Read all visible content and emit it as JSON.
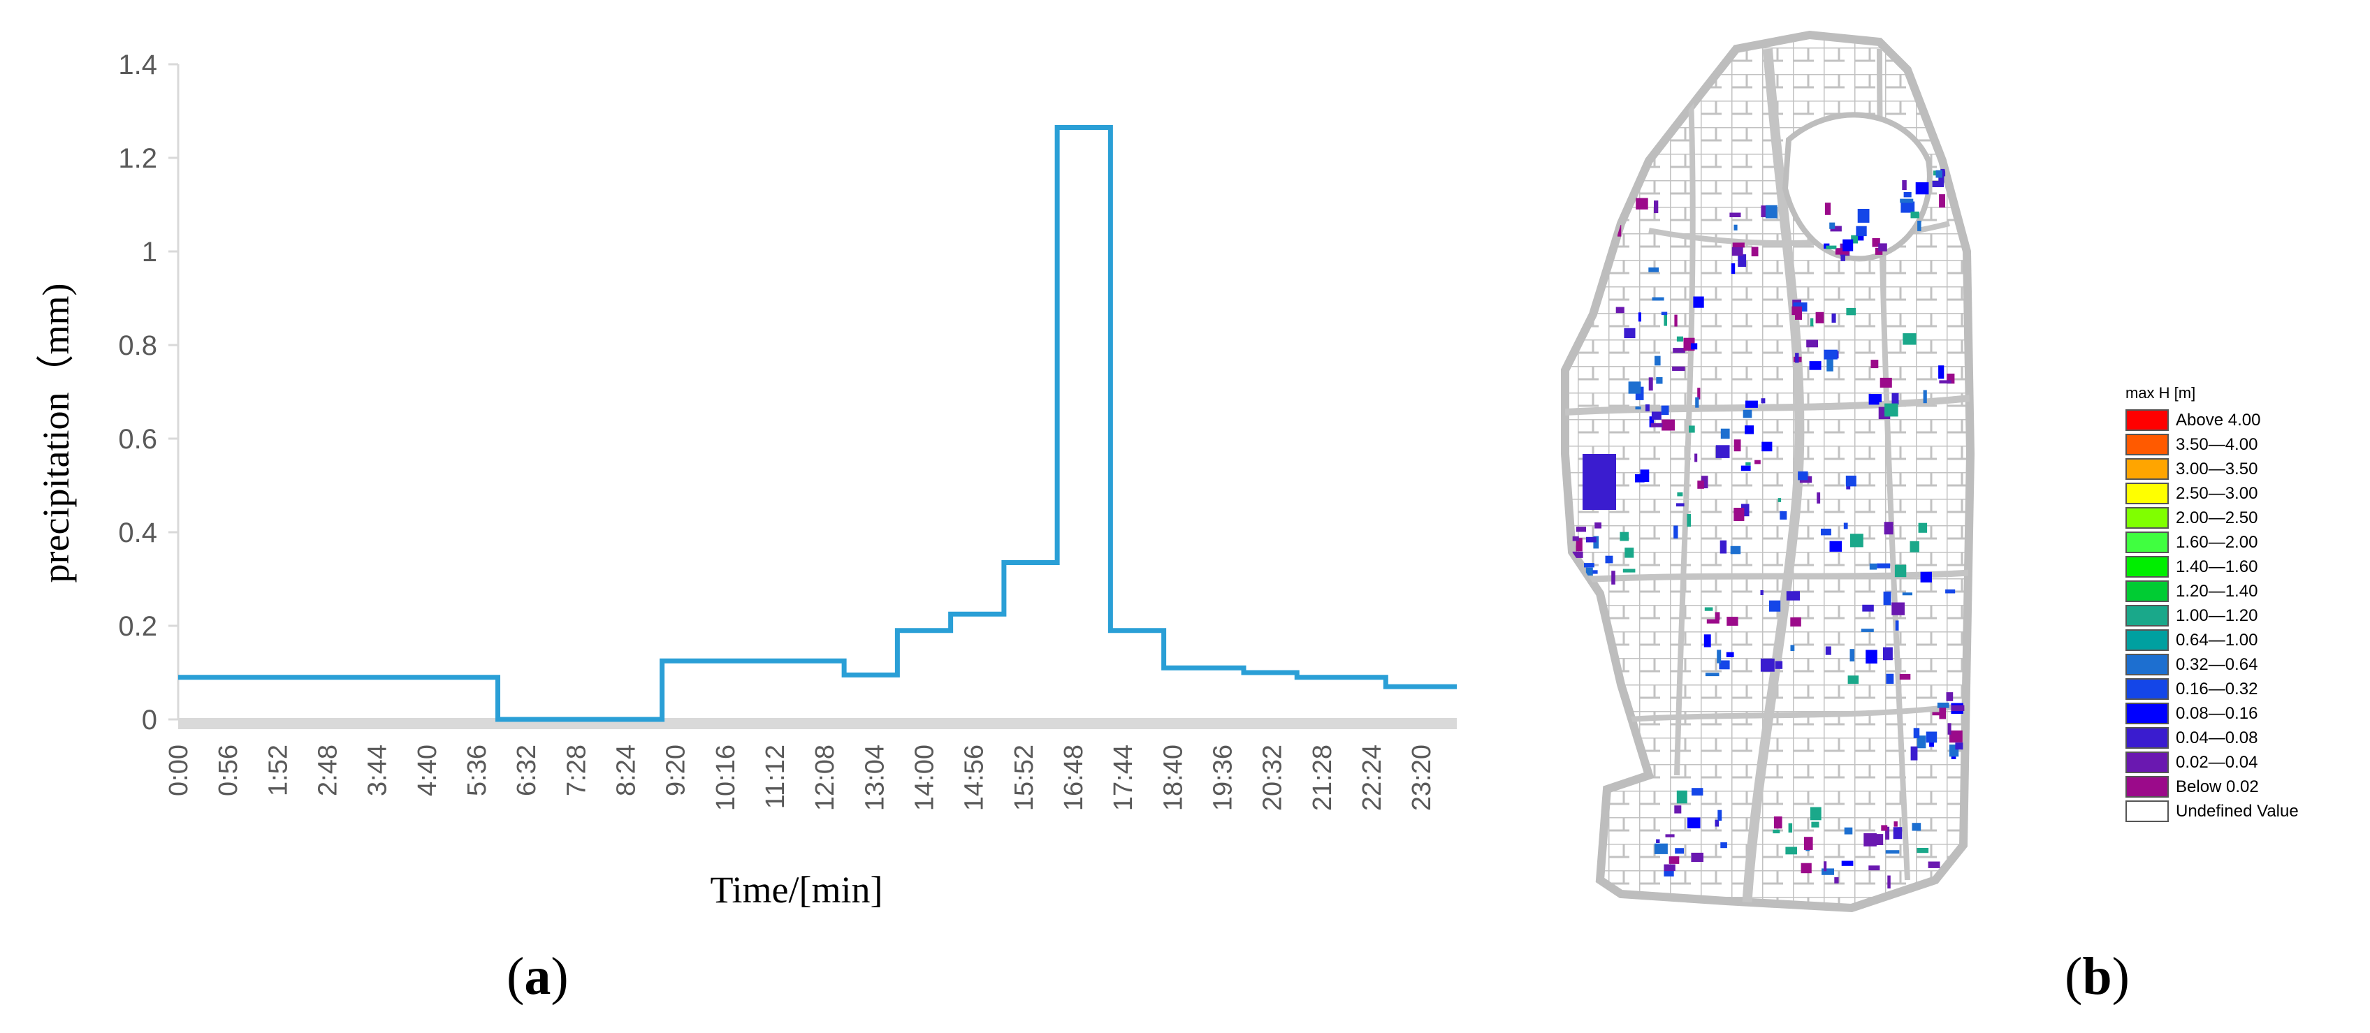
{
  "panels": {
    "a_label_open": "(",
    "a_label_letter": "a",
    "a_label_close": ")",
    "b_label_open": "(",
    "b_label_letter": "b",
    "b_label_close": ")"
  },
  "chart_data": {
    "type": "line",
    "step": true,
    "ylabel": "precipitation（mm)",
    "xlabel": "Time/[min]",
    "ylim": [
      0,
      1.4
    ],
    "yticks": [
      "0",
      "0.2",
      "0.4",
      "0.6",
      "0.8",
      "1",
      "1.2",
      "1.4"
    ],
    "xlim": [
      0,
      1440
    ],
    "xticks": [
      "0:00",
      "0:56",
      "1:52",
      "2:48",
      "3:44",
      "4:40",
      "5:36",
      "6:32",
      "7:28",
      "8:24",
      "9:20",
      "10:16",
      "11:12",
      "12:08",
      "13:04",
      "14:00",
      "14:56",
      "15:52",
      "16:48",
      "17:44",
      "18:40",
      "19:36",
      "20:32",
      "21:28",
      "22:24",
      "23:20"
    ],
    "line_color": "#2a9fd6",
    "x": [
      "0:00",
      "6:00",
      "9:05",
      "12:30",
      "13:30",
      "14:30",
      "15:30",
      "16:30",
      "17:30",
      "18:30",
      "20:00",
      "21:00",
      "22:40",
      "24:00"
    ],
    "values": [
      0.09,
      0.0,
      0.125,
      0.095,
      0.19,
      0.225,
      0.335,
      1.265,
      0.19,
      0.11,
      0.1,
      0.09,
      0.07,
      0.07
    ]
  },
  "map": {
    "legend_title": "max H [m]",
    "legend": [
      {
        "label": "Above 4.00",
        "color": "#ff0000"
      },
      {
        "label": "3.50—4.00",
        "color": "#ff5a00"
      },
      {
        "label": "3.00—3.50",
        "color": "#ffa500"
      },
      {
        "label": "2.50—3.00",
        "color": "#ffff00"
      },
      {
        "label": "2.00—2.50",
        "color": "#80ff00"
      },
      {
        "label": "1.60—2.00",
        "color": "#40ff40"
      },
      {
        "label": "1.40—1.60",
        "color": "#00ee00"
      },
      {
        "label": "1.20—1.40",
        "color": "#00cc33"
      },
      {
        "label": "1.00—1.20",
        "color": "#1aa88a"
      },
      {
        "label": "0.64—1.00",
        "color": "#00a0a0"
      },
      {
        "label": "0.32—0.64",
        "color": "#1d6fd0"
      },
      {
        "label": "0.16—0.32",
        "color": "#1446e8"
      },
      {
        "label": "0.08—0.16",
        "color": "#0000ff"
      },
      {
        "label": "0.04—0.08",
        "color": "#3a1ccf"
      },
      {
        "label": "0.02—0.04",
        "color": "#6a18b0"
      },
      {
        "label": "Below 0.02",
        "color": "#9b0a8a"
      },
      {
        "label": "Undefined Value",
        "color": "#ffffff"
      }
    ]
  }
}
